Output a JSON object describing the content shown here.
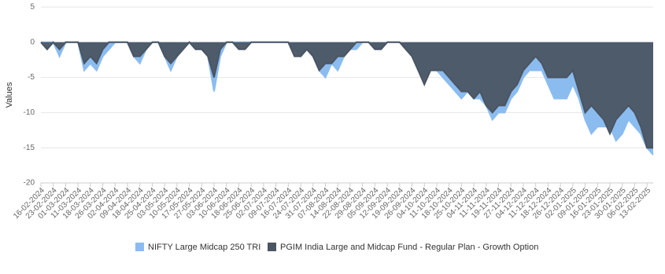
{
  "chart_data": {
    "type": "area",
    "y_label": "Values",
    "ylim": [
      -20,
      5
    ],
    "yticks": [
      -20,
      -15,
      -10,
      -5,
      0,
      5
    ],
    "grid": true,
    "categories": [
      "16-02-2024",
      null,
      "23-02-2024",
      null,
      "01-03-2024",
      null,
      "11-03-2024",
      null,
      "18-03-2024",
      null,
      "26-03-2024",
      null,
      "02-04-2024",
      null,
      "09-04-2024",
      null,
      "18-04-2024",
      null,
      "25-04-2024",
      null,
      "03-05-2024",
      null,
      "10-05-2024",
      null,
      "17-05-2024",
      null,
      "27-05-2024",
      null,
      "03-06-2024",
      null,
      "10-06-2024",
      null,
      "18-06-2024",
      null,
      "25-06-2024",
      null,
      "02-07-2024",
      null,
      "09-07-2024",
      null,
      "16-07-2024",
      null,
      "24-07-2024",
      null,
      "31-07-2024",
      null,
      "07-08-2024",
      null,
      "14-08-2024",
      null,
      "22-08-2024",
      null,
      "29-08-2024",
      null,
      "05-09-2024",
      null,
      "12-09-2024",
      null,
      "19-09-2024",
      null,
      "26-09-2024",
      null,
      "04-10-2024",
      null,
      "11-10-2024",
      null,
      "18-10-2024",
      null,
      "25-10-2024",
      null,
      "04-11-2024",
      null,
      "11-11-2024",
      null,
      "19-11-2024",
      null,
      "27-11-2024",
      null,
      "04-12-2024",
      null,
      "11-12-2024",
      null,
      "18-12-2024",
      null,
      "26-12-2024",
      null,
      "02-01-2025",
      null,
      "09-01-2025",
      null,
      "16-01-2025",
      null,
      "23-01-2025",
      null,
      "30-01-2025",
      null,
      "06-02-2025",
      null,
      "13-02-2025",
      null
    ],
    "series": [
      {
        "name": "NIFTY Large Midcap 250 TRI",
        "color": "#8bbcf0",
        "values": [
          0,
          0,
          0,
          -2,
          0,
          0,
          0,
          -4,
          -3,
          -4,
          -2,
          -1,
          0,
          0,
          0,
          -2,
          -3,
          -1,
          0,
          0,
          -2,
          -4,
          -2,
          -1,
          0,
          -1,
          -1,
          -2,
          -7,
          -2,
          0,
          0,
          0,
          0,
          0,
          0,
          0,
          0,
          0,
          0,
          0,
          -1,
          -2,
          -1,
          -2,
          -4,
          -5,
          -3,
          -4,
          -2,
          -1,
          -1,
          0,
          0,
          -1,
          -1,
          0,
          0,
          0,
          -1,
          -2,
          -4,
          -5,
          -4,
          -4,
          -5,
          -6,
          -7,
          -8,
          -7,
          -8,
          -8,
          -9,
          -11,
          -10,
          -10,
          -8,
          -7,
          -5,
          -4,
          -4,
          -4,
          -6,
          -8,
          -8,
          -8,
          -6,
          -8,
          -11,
          -13,
          -12,
          -12,
          -12,
          -14,
          -13,
          -11,
          -12,
          -13,
          -15,
          -16
        ]
      },
      {
        "name": "PGIM India Large and Midcap Fund - Regular Plan - Growth Option",
        "color": "#4a5563",
        "values": [
          0,
          -1,
          0,
          -1,
          0,
          0,
          0,
          -3,
          -2,
          -3,
          -1,
          0,
          0,
          0,
          0,
          -2,
          -2,
          -1,
          0,
          0,
          -2,
          -3,
          -2,
          -1,
          0,
          -1,
          -1,
          -2,
          -5,
          -1,
          0,
          0,
          -1,
          -1,
          0,
          0,
          0,
          0,
          0,
          0,
          0,
          -2,
          -2,
          -1,
          -2,
          -4,
          -3,
          -3,
          -2,
          -2,
          -1,
          0,
          0,
          0,
          -1,
          -1,
          0,
          0,
          0,
          -1,
          -2,
          -4,
          -6,
          -4,
          -4,
          -4,
          -5,
          -6,
          -7,
          -7,
          -8,
          -7,
          -9,
          -10,
          -9,
          -9,
          -7,
          -6,
          -4,
          -3,
          -2,
          -3,
          -5,
          -5,
          -5,
          -5,
          -4,
          -7,
          -10,
          -9,
          -10,
          -11,
          -13,
          -11,
          -10,
          -9,
          -10,
          -12,
          -15,
          -15
        ]
      }
    ]
  }
}
